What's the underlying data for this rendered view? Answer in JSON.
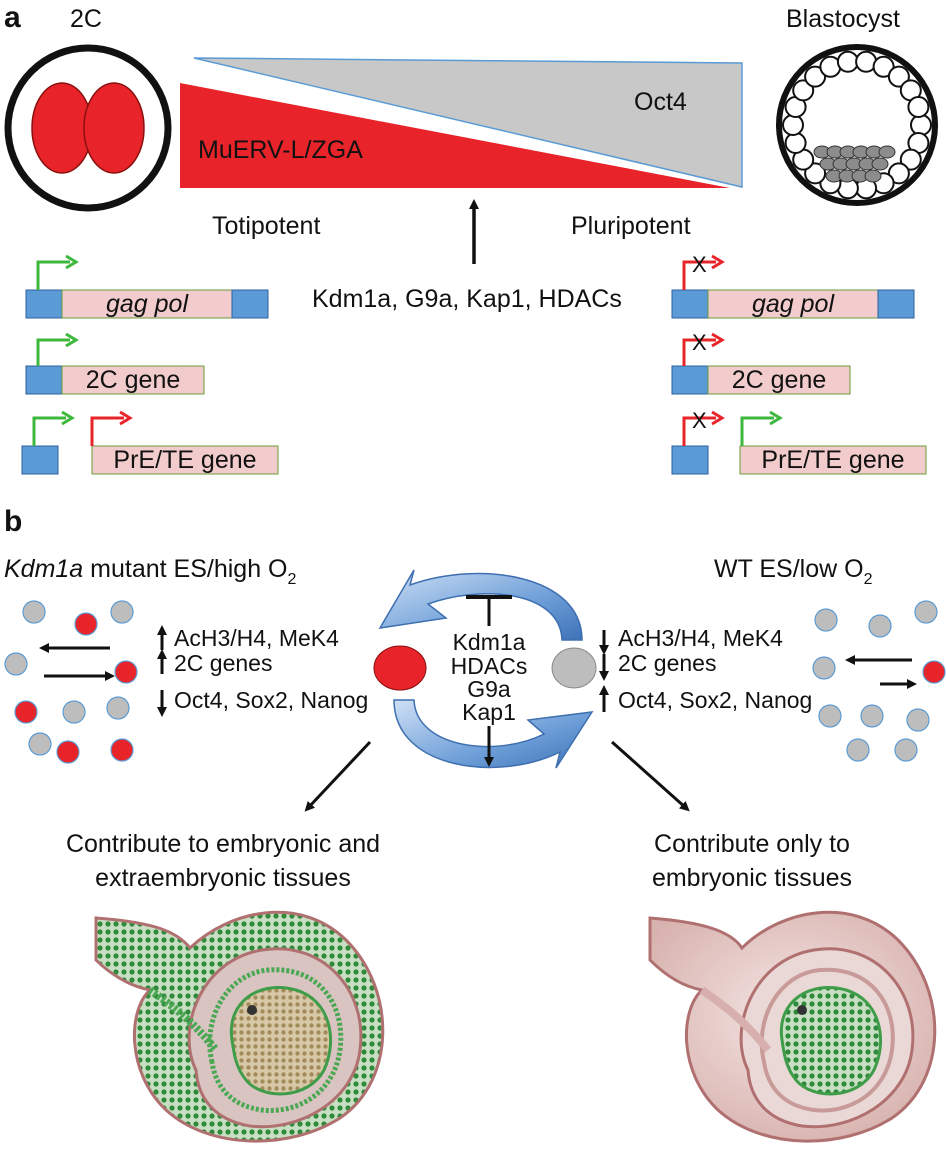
{
  "panel_a": {
    "letter": "a",
    "stage_left": "2C",
    "stage_right": "Blastocyst",
    "gradient_red_label": "MuERV-L/ZGA",
    "gradient_gray_label": "Oct4",
    "state_left": "Totipotent",
    "state_right": "Pluripotent",
    "regulators": "Kdm1a, G9a, Kap1, HDACs",
    "gene_labels": {
      "gag_pol": "gag pol",
      "two_c_gene": "2C gene",
      "pre_te_gene": "PrE/TE gene"
    },
    "repression_mark": "X"
  },
  "panel_b": {
    "letter": "b",
    "left_condition_gene": "Kdm1a",
    "left_condition_rest": " mutant  ES/high O",
    "right_condition": "WT  ES/low O",
    "o2_subscript": "2",
    "marks_1": "AcH3/H4, MeK4",
    "marks_2": "2C genes",
    "marks_3": "Oct4, Sox2, Nanog",
    "center_factors": [
      "Kdm1a",
      "HDACs",
      "G9a",
      "Kap1"
    ],
    "outcome_left_line1": "Contribute to embryonic and",
    "outcome_left_line2": "extraembryonic tissues",
    "outcome_right_line1": "Contribute only to",
    "outcome_right_line2": "embryonic tissues"
  },
  "colors": {
    "red": "#e8242a",
    "gray": "#c8c8c8",
    "blue_box": "#5b9bd5",
    "pink_box": "#f2cccc",
    "green_arrow": "#3db83d",
    "red_arrow": "#e8242a",
    "embryo_green": "#3f9d4a",
    "embryo_pink": "#e6c2c2"
  }
}
